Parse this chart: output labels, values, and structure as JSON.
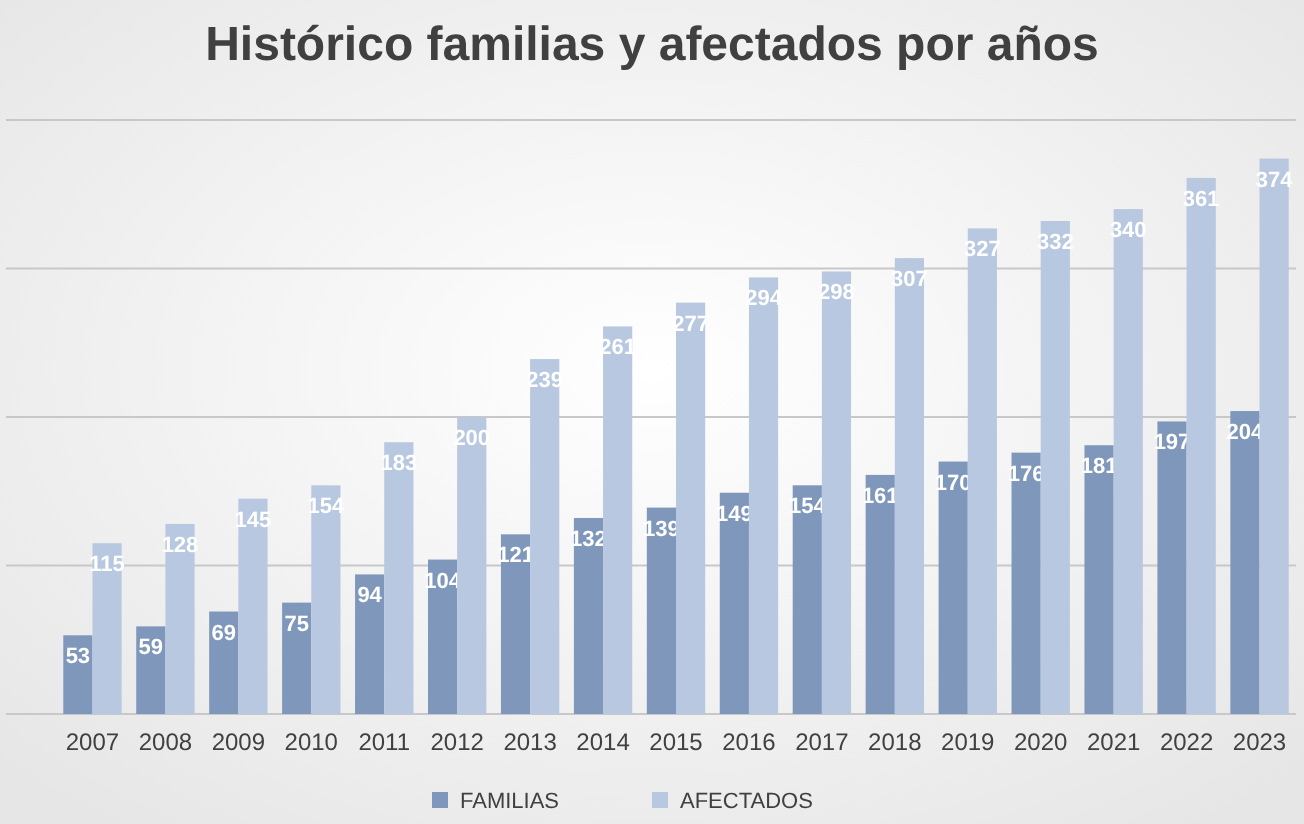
{
  "chart_data": {
    "type": "bar",
    "title": "Histórico familias y afectados por años",
    "categories": [
      "2007",
      "2008",
      "2009",
      "2010",
      "2011",
      "2012",
      "2013",
      "2014",
      "2015",
      "2016",
      "2017",
      "2018",
      "2019",
      "2020",
      "2021",
      "2022",
      "2023"
    ],
    "series": [
      {
        "name": "FAMILIAS",
        "color": "#7f97bb",
        "values": [
          53,
          59,
          69,
          75,
          94,
          104,
          121,
          132,
          139,
          149,
          154,
          161,
          170,
          176,
          181,
          197,
          204
        ]
      },
      {
        "name": "AFECTADOS",
        "color": "#b7c8e0",
        "values": [
          115,
          128,
          145,
          154,
          183,
          200,
          239,
          261,
          277,
          294,
          298,
          307,
          327,
          332,
          340,
          361,
          374
        ]
      }
    ],
    "ylim": [
      0,
      400
    ],
    "yticks": [
      {
        "value": 0,
        "label": null
      },
      {
        "value": 100,
        "label": null
      },
      {
        "value": 200,
        "label": null
      },
      {
        "value": 300,
        "label": null
      },
      {
        "value": 400,
        "label": null
      }
    ],
    "tick_labels": "x",
    "grid": "y",
    "data_labels": true,
    "legend": "bottom"
  }
}
